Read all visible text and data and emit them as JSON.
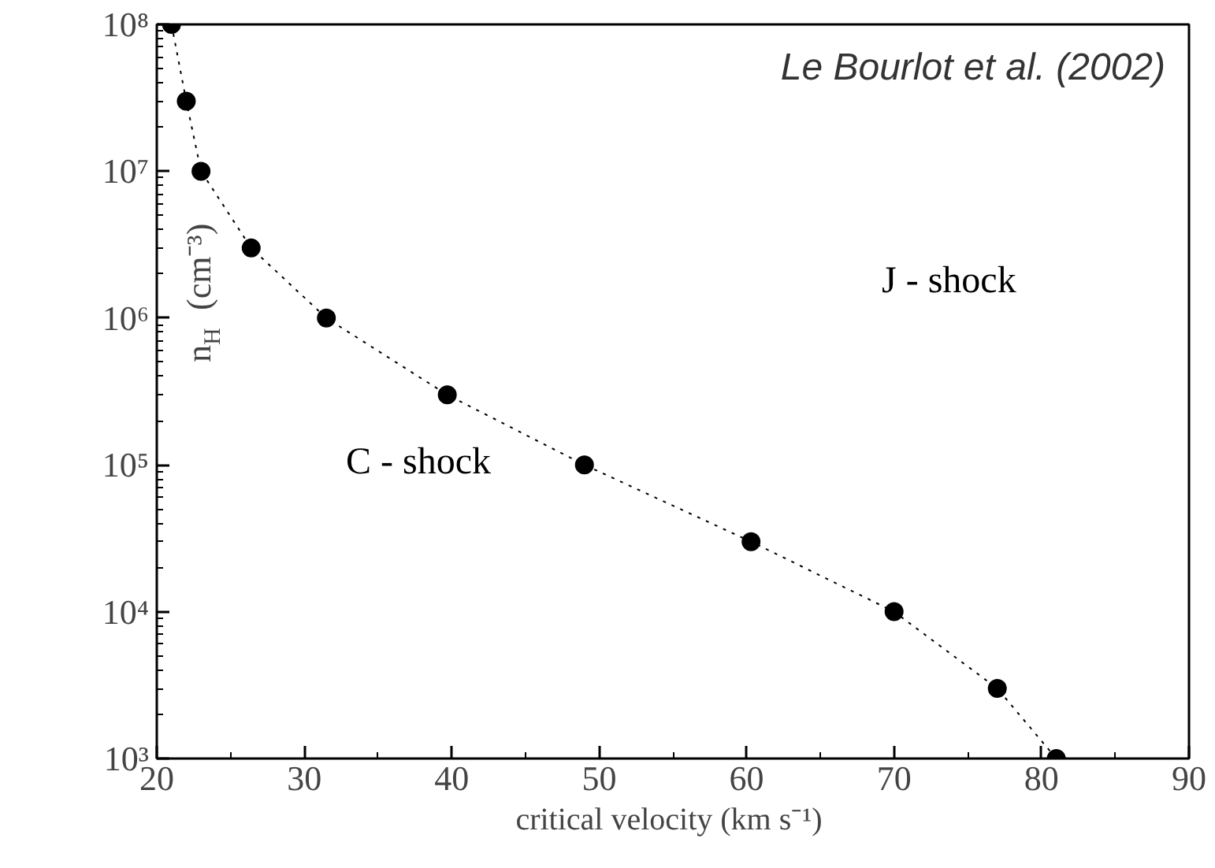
{
  "chart_data": {
    "type": "line",
    "xlabel": "critical velocity  (km s⁻¹)",
    "ylabel": "n$_{H}$  (cm⁻³)",
    "x": [
      21,
      22,
      23,
      26.4,
      31.5,
      39.7,
      49,
      60.3,
      70,
      77,
      81
    ],
    "series": [
      {
        "color": "#000000",
        "values": [
          100000000.0,
          30000000.0,
          10000000.0,
          3000000.0,
          1000000.0,
          300000.0,
          100000.0,
          30000.0,
          10000.0,
          3000.0,
          1000.0
        ]
      }
    ],
    "xlim": [
      20,
      90
    ],
    "xticks": [
      20,
      30,
      40,
      50,
      60,
      70,
      80,
      90
    ],
    "ylim": [
      1000,
      100000000
    ],
    "yticks": [
      {
        "value": 1000,
        "label": "10³"
      },
      {
        "value": 10000,
        "label": "10⁴"
      },
      {
        "value": 100000,
        "label": "10⁵"
      },
      {
        "value": 1000000,
        "label": "10⁶"
      },
      {
        "value": 10000000,
        "label": "10⁷"
      },
      {
        "value": 100000000,
        "label": "10⁸"
      }
    ],
    "log": "y",
    "grid": false,
    "marker": "circle",
    "line_style": "dotted",
    "annotations": [
      "Le Bourlot et al. (2002)",
      "J - shock",
      "C - shock"
    ]
  }
}
